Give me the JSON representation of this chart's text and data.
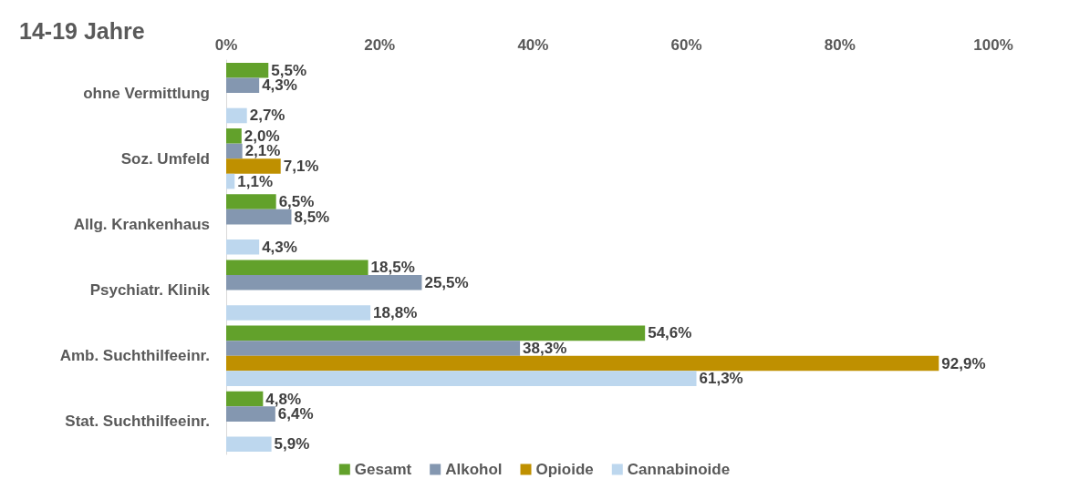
{
  "chart_data": {
    "type": "bar",
    "orientation": "horizontal",
    "title": "14-19 Jahre",
    "categories": [
      "ohne Vermittlung",
      "Soz. Umfeld",
      "Allg. Krankenhaus",
      "Psychiatr. Klinik",
      "Amb. Suchthilfeeinr.",
      "Stat. Suchthilfeeinr."
    ],
    "series": [
      {
        "name": "Gesamt",
        "color": "#62a12b",
        "values": [
          5.5,
          2.0,
          6.5,
          18.5,
          54.6,
          4.8
        ],
        "value_labels": [
          "5,5%",
          "2,0%",
          "6,5%",
          "18,5%",
          "54,6%",
          "4,8%"
        ]
      },
      {
        "name": "Alkohol",
        "color": "#8497b0",
        "values": [
          4.3,
          2.1,
          8.5,
          25.5,
          38.3,
          6.4
        ],
        "value_labels": [
          "4,3%",
          "2,1%",
          "8,5%",
          "25,5%",
          "38,3%",
          "6,4%"
        ]
      },
      {
        "name": "Opioide",
        "color": "#bf9000",
        "values": [
          null,
          7.1,
          null,
          null,
          92.9,
          null
        ],
        "value_labels": [
          null,
          "7,1%",
          null,
          null,
          "92,9%",
          null
        ]
      },
      {
        "name": "Cannabinoide",
        "color": "#bdd7ee",
        "values": [
          2.7,
          1.1,
          4.3,
          18.8,
          61.3,
          5.9
        ],
        "value_labels": [
          "2,7%",
          "1,1%",
          "4,3%",
          "18,8%",
          "61,3%",
          "5,9%"
        ]
      }
    ],
    "xlim": [
      0,
      100
    ],
    "xticks": [
      {
        "value": 0,
        "label": "0%"
      },
      {
        "value": 20,
        "label": "20%"
      },
      {
        "value": 40,
        "label": "40%"
      },
      {
        "value": 60,
        "label": "60%"
      },
      {
        "value": 80,
        "label": "80%"
      },
      {
        "value": 100,
        "label": "100%"
      }
    ],
    "legend": "bottom",
    "grid": false
  }
}
